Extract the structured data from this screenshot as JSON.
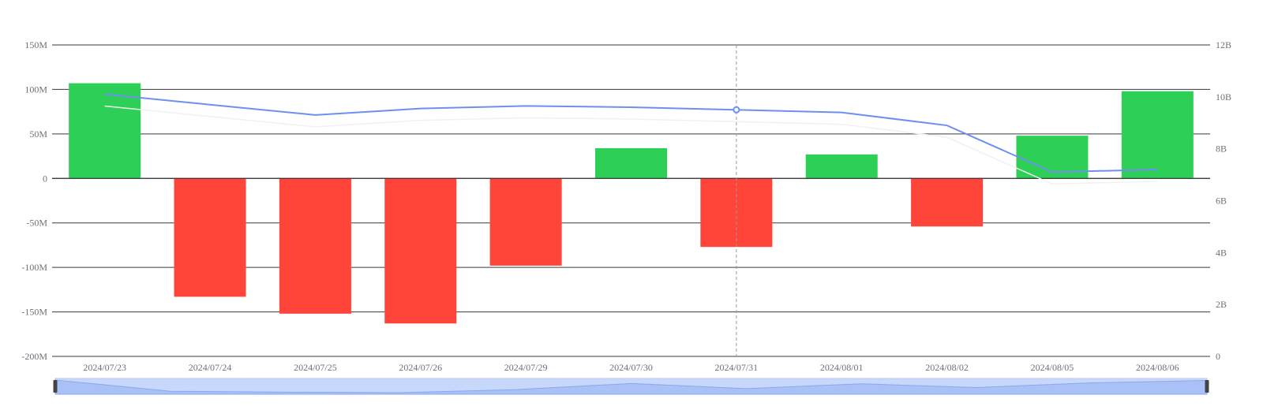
{
  "chart_data": {
    "type": "bar",
    "categories": [
      "2024/07/23",
      "2024/07/24",
      "2024/07/25",
      "2024/07/26",
      "2024/07/29",
      "2024/07/30",
      "2024/07/31",
      "2024/08/01",
      "2024/08/02",
      "2024/08/05",
      "2024/08/06"
    ],
    "series": [
      {
        "type": "bar",
        "axis": "left",
        "values": [
          107000000,
          -133000000,
          -152000000,
          -163000000,
          -98000000,
          34000000,
          -77000000,
          27000000,
          -54000000,
          48000000,
          98000000
        ]
      },
      {
        "type": "line",
        "axis": "right",
        "values": [
          10100000000,
          9700000000,
          9300000000,
          9550000000,
          9650000000,
          9600000000,
          9500000000,
          9400000000,
          8900000000,
          7100000000,
          7200000000
        ]
      }
    ],
    "y_left": {
      "min": -200000000,
      "max": 150000000,
      "ticks": [
        "150M",
        "100M",
        "50M",
        "0",
        "-50M",
        "-100M",
        "-150M",
        "-200M"
      ]
    },
    "y_right": {
      "min": 0,
      "max": 12000000000,
      "ticks": [
        "12B",
        "10B",
        "8B",
        "6B",
        "4B",
        "2B",
        "0"
      ]
    },
    "positive_color": "#2ecf56",
    "negative_color": "#ff453a",
    "line_color": "#6f8ff0",
    "crosshair_category": "2024/07/31",
    "grid": true,
    "legend": "none",
    "data_zoom": {
      "start": 0,
      "end": 100,
      "fill_color": "#c8d8fa"
    }
  }
}
